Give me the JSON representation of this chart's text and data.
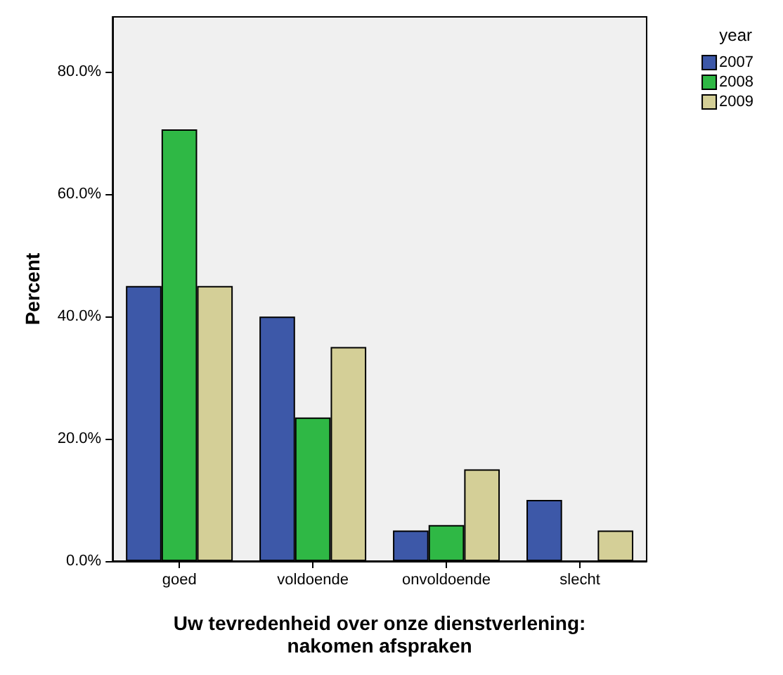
{
  "chart_data": {
    "type": "bar",
    "xlabel": "Uw tevredenheid over onze dienstverlening:\nnakomen afspraken",
    "ylabel": "Percent",
    "legend_title": "year",
    "legend": "top right",
    "categories": [
      "goed",
      "voldoende",
      "onvoldoende",
      "slecht"
    ],
    "series": [
      {
        "name": "2007",
        "color": "#3d58a8",
        "values": [
          45,
          40,
          5,
          10
        ]
      },
      {
        "name": "2008",
        "color": "#2fb845",
        "values": [
          70.6,
          23.5,
          5.9,
          0
        ]
      },
      {
        "name": "2009",
        "color": "#d4cf97",
        "values": [
          45,
          35,
          15,
          5
        ]
      }
    ],
    "ylim": [
      0,
      89
    ],
    "yticks": [
      {
        "value": 0,
        "label": "0.0%"
      },
      {
        "value": 20,
        "label": "20.0%"
      },
      {
        "value": 40,
        "label": "40.0%"
      },
      {
        "value": 60,
        "label": "60.0%"
      },
      {
        "value": 80,
        "label": "80.0%"
      }
    ],
    "grid": false
  }
}
